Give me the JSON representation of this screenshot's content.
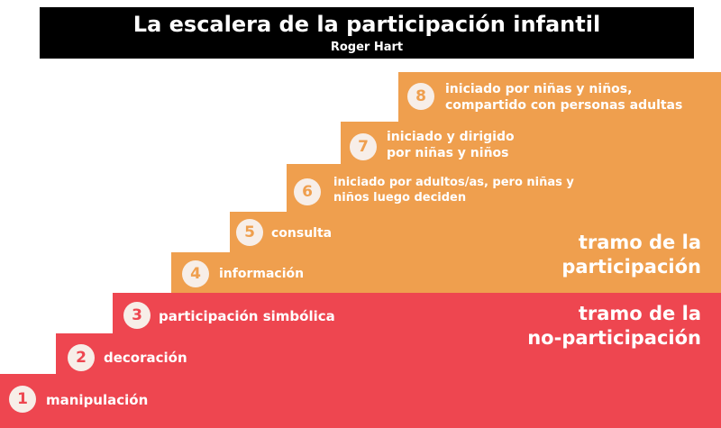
{
  "header": {
    "title": "La escalera de la participación infantil",
    "subtitle": "Roger Hart"
  },
  "colors": {
    "header_bg": "#000000",
    "non_participation": "#ee4650",
    "participation": "#ef9f4e",
    "badge_bg": "#f7eee8",
    "text": "#ffffff"
  },
  "sections": {
    "participation": {
      "line1": "tramo de la",
      "line2": "participación"
    },
    "non_participation": {
      "line1": "tramo de la",
      "line2": "no-participación"
    }
  },
  "steps": [
    {
      "number": "1",
      "label_line1": "manipulación",
      "label_line2": ""
    },
    {
      "number": "2",
      "label_line1": "decoración",
      "label_line2": ""
    },
    {
      "number": "3",
      "label_line1": "participación simbólica",
      "label_line2": ""
    },
    {
      "number": "4",
      "label_line1": "información",
      "label_line2": ""
    },
    {
      "number": "5",
      "label_line1": "consulta",
      "label_line2": ""
    },
    {
      "number": "6",
      "label_line1": "iniciado por adultos/as, pero niñas y",
      "label_line2": "niños luego deciden"
    },
    {
      "number": "7",
      "label_line1": "iniciado y dirigido",
      "label_line2": "por niñas y niños"
    },
    {
      "number": "8",
      "label_line1": "iniciado por niñas y niños,",
      "label_line2": "compartido con personas adultas"
    }
  ]
}
